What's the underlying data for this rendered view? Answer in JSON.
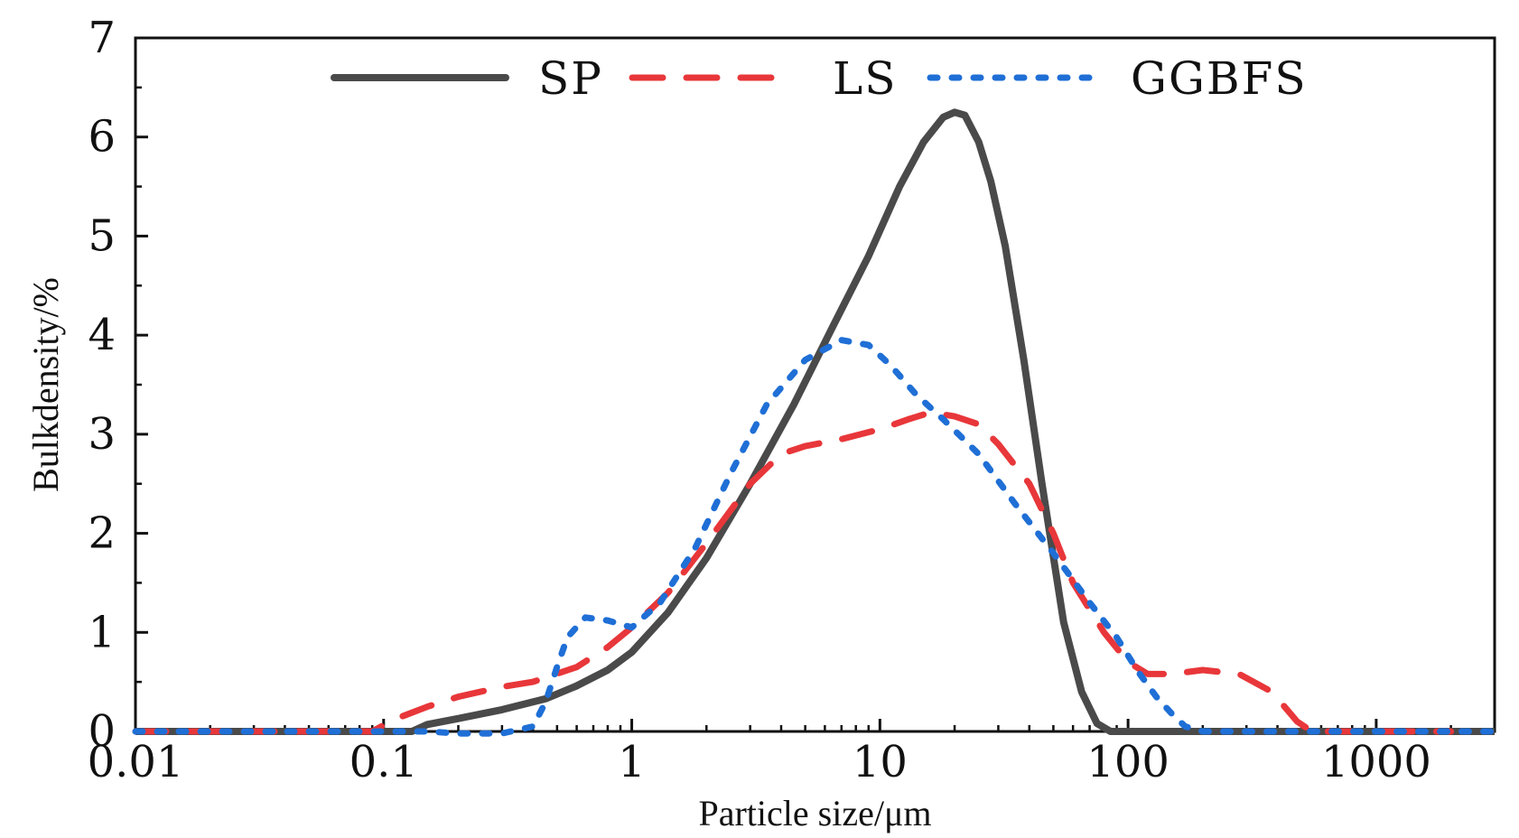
{
  "chart_data": {
    "type": "line",
    "title": "",
    "xlabel": "Particle size/μm",
    "ylabel": "Bulkdensity/%",
    "xscale": "log",
    "xlim": [
      0.01,
      3000
    ],
    "ylim": [
      0,
      7
    ],
    "grid": false,
    "legend_position": "top",
    "x_ticks": [
      0.01,
      0.1,
      1,
      10,
      100,
      1000
    ],
    "x_tick_labels": [
      "0.01",
      "0.1",
      "1",
      "10",
      "100",
      "1000"
    ],
    "y_ticks": [
      0,
      1,
      2,
      3,
      4,
      5,
      6,
      7
    ],
    "y_tick_labels": [
      "0",
      "1",
      "2",
      "3",
      "4",
      "5",
      "6",
      "7"
    ],
    "series": [
      {
        "name": "SP",
        "color": "#4a4a4a",
        "style": "solid",
        "x": [
          0.01,
          0.05,
          0.13,
          0.15,
          0.2,
          0.3,
          0.45,
          0.6,
          0.8,
          1,
          1.4,
          2,
          3,
          4.5,
          6.5,
          9,
          12,
          15,
          18,
          20,
          22,
          25,
          28,
          32,
          38,
          45,
          55,
          65,
          75,
          85,
          100,
          1000,
          3000
        ],
        "y": [
          0,
          0,
          0,
          0.07,
          0.13,
          0.22,
          0.33,
          0.46,
          0.62,
          0.8,
          1.2,
          1.75,
          2.5,
          3.3,
          4.1,
          4.8,
          5.5,
          5.95,
          6.2,
          6.25,
          6.22,
          5.95,
          5.55,
          4.9,
          3.75,
          2.5,
          1.1,
          0.4,
          0.08,
          0,
          0,
          0,
          0
        ]
      },
      {
        "name": "LS",
        "color": "#e8373a",
        "style": "dashed",
        "x": [
          0.01,
          0.05,
          0.09,
          0.11,
          0.15,
          0.2,
          0.3,
          0.4,
          0.6,
          0.8,
          1,
          1.4,
          2,
          3,
          4,
          5,
          7,
          10,
          13,
          16,
          20,
          25,
          30,
          40,
          50,
          60,
          80,
          100,
          120,
          150,
          200,
          280,
          380,
          480,
          550,
          700,
          1000,
          2000
        ],
        "y": [
          0,
          0,
          0,
          0.12,
          0.25,
          0.35,
          0.45,
          0.5,
          0.65,
          0.85,
          1.05,
          1.4,
          1.9,
          2.5,
          2.8,
          2.88,
          2.95,
          3.05,
          3.15,
          3.22,
          3.18,
          3.1,
          2.9,
          2.5,
          2.0,
          1.5,
          1.0,
          0.7,
          0.58,
          0.58,
          0.62,
          0.58,
          0.4,
          0.1,
          0,
          0,
          0,
          0
        ]
      },
      {
        "name": "GGBFS",
        "color": "#1f6fd6",
        "style": "dotted",
        "x": [
          0.01,
          0.1,
          0.15,
          0.2,
          0.3,
          0.4,
          0.45,
          0.5,
          0.55,
          0.65,
          0.8,
          1,
          1.3,
          1.8,
          2.5,
          3.5,
          5,
          7,
          9,
          11,
          14,
          18,
          25,
          35,
          50,
          70,
          90,
          110,
          130,
          150,
          170,
          200,
          300,
          1000,
          3000
        ],
        "y": [
          0,
          0,
          0,
          -0.02,
          -0.02,
          0.05,
          0.3,
          0.65,
          0.95,
          1.15,
          1.12,
          1.05,
          1.3,
          1.85,
          2.6,
          3.3,
          3.75,
          3.95,
          3.9,
          3.7,
          3.4,
          3.15,
          2.8,
          2.3,
          1.8,
          1.3,
          0.95,
          0.6,
          0.35,
          0.18,
          0.05,
          0,
          0,
          0,
          0
        ]
      }
    ]
  }
}
